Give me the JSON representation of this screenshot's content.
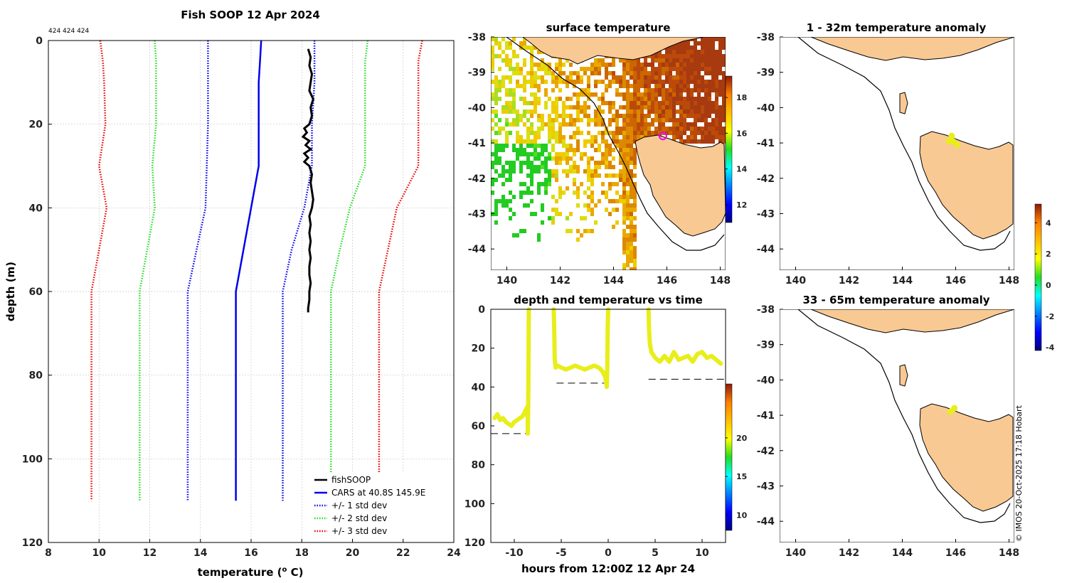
{
  "figure": {
    "suptitle": "Fish SOOP 12 Apr 2024",
    "counts": "424 424 424",
    "watermark": "© IMOS 20-Oct-2025 17:18 Hobart"
  },
  "colors": {
    "fishsoop": "#000000",
    "cars": "#0000ee",
    "std1": "#0000ee",
    "std2": "#22dd22",
    "std3": "#ee0000",
    "track": "#e8ee1a",
    "land": "#f9c994",
    "marker": "#ee00ee"
  },
  "chart_data": [
    {
      "id": "profile",
      "type": "line",
      "title": "",
      "xlabel": "temperature (",
      "xlabel_sup": "o",
      "xlabel_end": " C)",
      "ylabel": "depth (m)",
      "xlim": [
        8,
        24
      ],
      "ylim": [
        0,
        120
      ],
      "y_inverted": true,
      "xticks": [
        8,
        10,
        12,
        14,
        16,
        18,
        20,
        22,
        24
      ],
      "yticks": [
        0,
        20,
        40,
        60,
        80,
        100,
        120
      ],
      "grid": true,
      "legend_position": "bottom-right",
      "cars_depths": [
        0,
        5,
        10,
        20,
        30,
        40,
        50,
        60,
        70,
        80,
        90,
        100,
        110
      ],
      "series": [
        {
          "name": "fishSOOP",
          "style": "solid",
          "color_key": "fishsoop",
          "depths": [
            2,
            4,
            6,
            8,
            10,
            12,
            14,
            16,
            18,
            20,
            21,
            22,
            23,
            24,
            25,
            26,
            27,
            28,
            29,
            30,
            32,
            34,
            36,
            38,
            40,
            42,
            44,
            46,
            48,
            50,
            52,
            54,
            56,
            58,
            60,
            62,
            64,
            65
          ],
          "values": [
            18.25,
            18.35,
            18.3,
            18.4,
            18.35,
            18.3,
            18.45,
            18.35,
            18.4,
            18.3,
            18.1,
            18.2,
            18.05,
            18.3,
            18.15,
            18.35,
            18.1,
            18.25,
            18.1,
            18.3,
            18.4,
            18.35,
            18.4,
            18.45,
            18.4,
            18.3,
            18.35,
            18.3,
            18.35,
            18.3,
            18.35,
            18.3,
            18.3,
            18.35,
            18.3,
            18.3,
            18.25,
            18.25
          ]
        },
        {
          "name": "CARS at 40.8S 145.9E",
          "style": "solid",
          "color_key": "cars",
          "values": [
            16.4,
            16.35,
            16.3,
            16.3,
            16.3,
            16.0,
            15.7,
            15.4,
            15.4,
            15.4,
            15.4,
            15.4,
            15.4
          ]
        },
        {
          "name": "+/- 1 std dev",
          "style": "dotted",
          "color_key": "std1",
          "lower": [
            14.3,
            14.3,
            14.3,
            14.3,
            14.25,
            14.2,
            13.85,
            13.5,
            13.5,
            13.5,
            13.5,
            13.5,
            13.5
          ],
          "upper": [
            18.5,
            18.5,
            18.5,
            18.4,
            18.4,
            18.1,
            17.6,
            17.25,
            17.25,
            17.25,
            17.25,
            17.25,
            17.25
          ]
        },
        {
          "name": "+/- 2 std dev",
          "style": "dotted",
          "color_key": "std2",
          "lower": [
            12.2,
            12.25,
            12.25,
            12.25,
            12.1,
            12.2,
            11.9,
            11.6,
            11.6,
            11.6,
            11.6,
            11.6,
            11.6
          ],
          "upper": [
            20.6,
            20.5,
            20.5,
            20.5,
            20.5,
            19.9,
            19.5,
            19.15,
            19.15,
            19.15,
            19.15,
            19.15,
            19.15
          ]
        },
        {
          "name": "+/- 3 std dev",
          "style": "dotted",
          "color_key": "std3",
          "lower": [
            10.05,
            10.15,
            10.2,
            10.25,
            10.0,
            10.3,
            10.0,
            9.7,
            9.7,
            9.7,
            9.7,
            9.7,
            9.7
          ],
          "upper": [
            22.75,
            22.6,
            22.6,
            22.6,
            22.6,
            21.75,
            21.4,
            21.05,
            21.05,
            21.05,
            21.05,
            21.05,
            21.05
          ]
        }
      ]
    },
    {
      "id": "surface_temperature",
      "type": "heatmap",
      "title": "surface temperature",
      "xlim": [
        139.4,
        148.2
      ],
      "ylim": [
        -44.6,
        -38
      ],
      "xticks": [
        140,
        142,
        144,
        146,
        148
      ],
      "yticks": [
        -38,
        -39,
        -40,
        -41,
        -42,
        -43,
        -44
      ],
      "colorbar_ticks": [
        12,
        14,
        16,
        18
      ],
      "colorbar_range": [
        11,
        19.2
      ],
      "marker_position": {
        "lon": 145.85,
        "lat": -40.8
      }
    },
    {
      "id": "depth_temperature_vs_time",
      "type": "scatter",
      "title": "depth and temperature vs time",
      "xlabel": "hours from 12:00Z 12 Apr 24",
      "xlim": [
        -12.5,
        12.5
      ],
      "ylim": [
        0,
        120
      ],
      "y_inverted": true,
      "xticks": [
        -10,
        -5,
        0,
        5,
        10
      ],
      "yticks": [
        0,
        20,
        40,
        60,
        80,
        100,
        120
      ],
      "colorbar_ticks": [
        10,
        15,
        20
      ],
      "colorbar_range": [
        8,
        27
      ],
      "segments": [
        {
          "hours": [
            -12.1,
            -11.8,
            -11.5,
            -11.2,
            -10.9,
            -10.6,
            -10.3,
            -10.0,
            -9.7,
            -9.4,
            -9.1,
            -8.8,
            -8.6,
            -8.55,
            -8.5,
            -8.48,
            -8.46,
            -8.45
          ],
          "depths": [
            56,
            54,
            57,
            56,
            58,
            59,
            60,
            58,
            57,
            56,
            55,
            52,
            50,
            64,
            40,
            20,
            5,
            0
          ]
        },
        {
          "hours": [
            -5.8,
            -5.75,
            -5.7,
            -5.6,
            -5.4,
            -5.0,
            -4.5,
            -4.0,
            -3.5,
            -3.0,
            -2.5,
            -2.0,
            -1.5,
            -1.0,
            -0.6,
            -0.3,
            -0.15,
            -0.1,
            -0.05,
            0.0
          ],
          "depths": [
            0,
            10,
            25,
            30,
            29,
            30,
            31,
            30,
            29,
            30,
            31,
            30,
            29,
            30,
            32,
            35,
            40,
            30,
            10,
            0
          ]
        },
        {
          "hours": [
            4.3,
            4.35,
            4.45,
            4.6,
            5.0,
            5.5,
            6.0,
            6.5,
            7.0,
            7.5,
            8.0,
            8.5,
            9.0,
            9.5,
            10.0,
            10.5,
            11.0,
            11.5,
            12.0
          ],
          "depths": [
            0,
            10,
            18,
            22,
            25,
            27,
            24,
            27,
            22,
            26,
            25,
            24,
            27,
            23,
            22,
            25,
            24,
            26,
            28
          ]
        }
      ],
      "reference_lines": [
        {
          "from_hour": -12.5,
          "to_hour": -8.5,
          "depth": 64
        },
        {
          "from_hour": -5.5,
          "to_hour": 0.0,
          "depth": 38
        },
        {
          "from_hour": 4.3,
          "to_hour": 12.5,
          "depth": 36
        }
      ]
    },
    {
      "id": "anomaly_1_32",
      "type": "scatter",
      "title": "1 - 32m temperature anomaly",
      "xlim": [
        139.4,
        148.2
      ],
      "ylim": [
        -44.6,
        -38
      ],
      "xticks": [
        140,
        142,
        144,
        146,
        148
      ],
      "yticks": [
        -38,
        -39,
        -40,
        -41,
        -42,
        -43,
        -44
      ],
      "points": [
        {
          "lon": 145.85,
          "lat": -40.8
        },
        {
          "lon": 145.9,
          "lat": -40.95
        },
        {
          "lon": 146.05,
          "lat": -41.05
        },
        {
          "lon": 145.75,
          "lat": -40.95
        }
      ]
    },
    {
      "id": "anomaly_33_65",
      "type": "scatter",
      "title": "33 - 65m temperature anomaly",
      "xlim": [
        139.4,
        148.2
      ],
      "ylim": [
        -44.6,
        -38
      ],
      "xticks": [
        140,
        142,
        144,
        146,
        148
      ],
      "yticks": [
        -38,
        -39,
        -40,
        -41,
        -42,
        -43,
        -44
      ],
      "points": [
        {
          "lon": 145.95,
          "lat": -40.8
        },
        {
          "lon": 145.8,
          "lat": -40.9
        }
      ],
      "colorbar_ticks": [
        -4,
        -2,
        0,
        2,
        4
      ],
      "colorbar_range": [
        -4.2,
        5.2
      ]
    }
  ]
}
